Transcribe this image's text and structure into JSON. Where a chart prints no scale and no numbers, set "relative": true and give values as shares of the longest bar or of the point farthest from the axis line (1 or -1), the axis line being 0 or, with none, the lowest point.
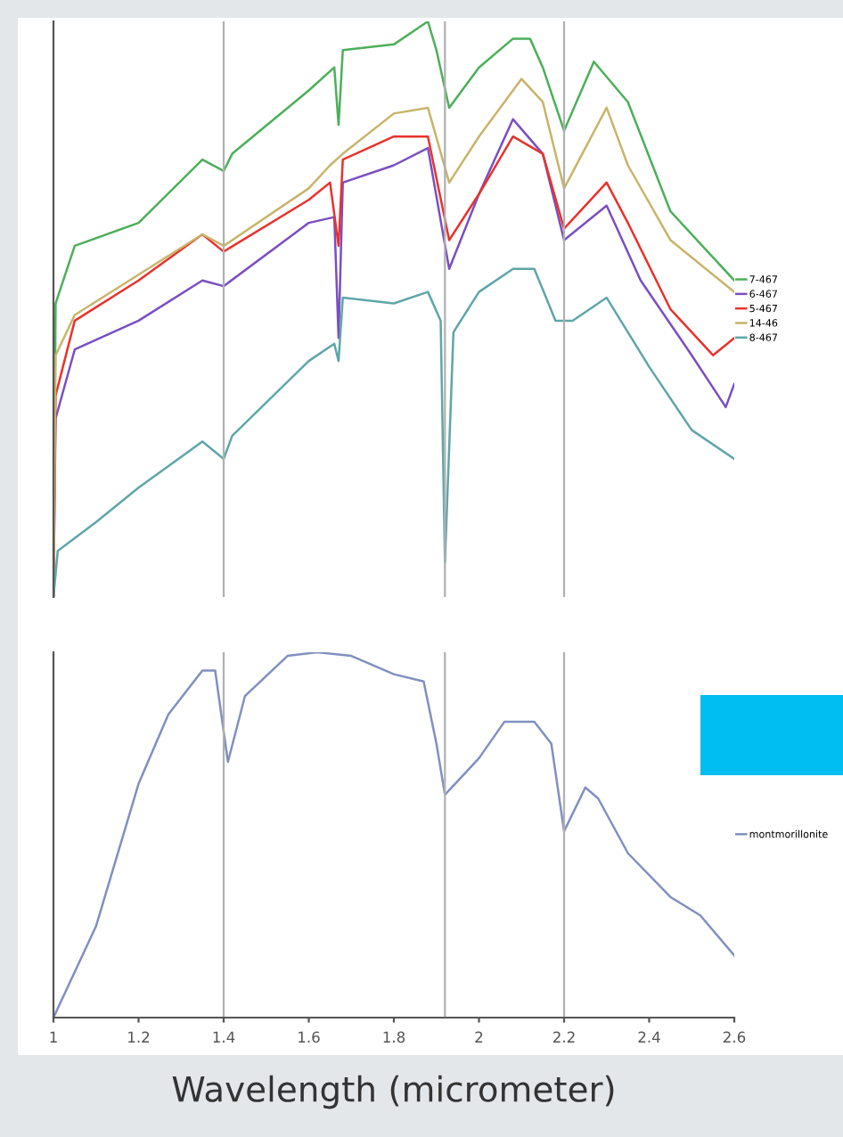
{
  "chart_data": [
    {
      "type": "line",
      "relative": true,
      "xlim": [
        1,
        2.6
      ],
      "xticks": [
        1,
        1.2,
        1.4,
        1.6,
        1.8,
        2,
        2.2,
        2.4,
        2.6
      ],
      "tick_labels": false,
      "legend": "right",
      "grid": false,
      "ref_lines": [
        {
          "axis": "x",
          "value": 1.4,
          "color": "#b0b0b0"
        },
        {
          "axis": "x",
          "value": 1.92,
          "color": "#b0b0b0"
        },
        {
          "axis": "x",
          "value": 2.2,
          "color": "#b0b0b0"
        }
      ],
      "series": [
        {
          "name": "7-467",
          "color": "#4caf5a",
          "x": [
            1.0,
            1.005,
            1.05,
            1.2,
            1.35,
            1.4,
            1.42,
            1.6,
            1.66,
            1.67,
            1.68,
            1.8,
            1.88,
            1.9,
            1.93,
            2.0,
            2.08,
            2.12,
            2.15,
            2.2,
            2.27,
            2.35,
            2.45,
            2.55,
            2.6
          ],
          "values": [
            0.0,
            0.51,
            0.61,
            0.65,
            0.76,
            0.74,
            0.77,
            0.88,
            0.92,
            0.82,
            0.95,
            0.96,
            1.0,
            0.95,
            0.85,
            0.92,
            0.97,
            0.97,
            0.92,
            0.81,
            0.93,
            0.86,
            0.67,
            0.59,
            0.55
          ]
        },
        {
          "name": "6-467",
          "color": "#7a4fc0",
          "x": [
            1.0,
            1.005,
            1.05,
            1.2,
            1.35,
            1.4,
            1.6,
            1.66,
            1.67,
            1.68,
            1.8,
            1.88,
            1.93,
            2.0,
            2.08,
            2.15,
            2.2,
            2.3,
            2.38,
            2.5,
            2.58,
            2.6
          ],
          "values": [
            0.0,
            0.31,
            0.43,
            0.48,
            0.55,
            0.54,
            0.65,
            0.66,
            0.45,
            0.72,
            0.75,
            0.78,
            0.57,
            0.7,
            0.83,
            0.77,
            0.62,
            0.68,
            0.55,
            0.42,
            0.33,
            0.37
          ]
        },
        {
          "name": "5-467",
          "color": "#e8322d",
          "x": [
            1.0,
            1.005,
            1.05,
            1.2,
            1.35,
            1.4,
            1.6,
            1.65,
            1.67,
            1.68,
            1.8,
            1.88,
            1.93,
            2.0,
            2.08,
            2.15,
            2.2,
            2.3,
            2.35,
            2.45,
            2.55,
            2.6
          ],
          "values": [
            0.0,
            0.35,
            0.48,
            0.55,
            0.63,
            0.6,
            0.69,
            0.72,
            0.61,
            0.76,
            0.8,
            0.8,
            0.62,
            0.7,
            0.8,
            0.77,
            0.64,
            0.72,
            0.65,
            0.5,
            0.42,
            0.45
          ]
        },
        {
          "name": "14-46",
          "color": "#c8b46a",
          "x": [
            1.0,
            1.005,
            1.05,
            1.2,
            1.35,
            1.4,
            1.6,
            1.65,
            1.68,
            1.8,
            1.88,
            1.93,
            2.0,
            2.1,
            2.15,
            2.2,
            2.3,
            2.35,
            2.45,
            2.6
          ],
          "values": [
            0.0,
            0.42,
            0.49,
            0.56,
            0.63,
            0.61,
            0.71,
            0.75,
            0.77,
            0.84,
            0.85,
            0.72,
            0.8,
            0.9,
            0.86,
            0.71,
            0.85,
            0.75,
            0.62,
            0.53
          ]
        },
        {
          "name": "8-467",
          "color": "#5fa6a8",
          "x": [
            1.0,
            1.01,
            1.1,
            1.2,
            1.35,
            1.4,
            1.42,
            1.6,
            1.66,
            1.67,
            1.68,
            1.8,
            1.88,
            1.91,
            1.92,
            1.94,
            2.0,
            2.08,
            2.13,
            2.18,
            2.22,
            2.3,
            2.4,
            2.5,
            2.6
          ],
          "values": [
            0.0,
            0.08,
            0.13,
            0.19,
            0.27,
            0.24,
            0.28,
            0.41,
            0.44,
            0.41,
            0.52,
            0.51,
            0.53,
            0.48,
            0.06,
            0.46,
            0.53,
            0.57,
            0.57,
            0.48,
            0.48,
            0.52,
            0.4,
            0.29,
            0.24
          ]
        }
      ]
    },
    {
      "type": "line",
      "relative": true,
      "xlim": [
        1,
        2.6
      ],
      "xticks": [
        1,
        1.2,
        1.4,
        1.6,
        1.8,
        2,
        2.2,
        2.4,
        2.6
      ],
      "tick_labels": "x",
      "legend": "right",
      "grid": false,
      "xlabel": "Wavelength (micrometer)",
      "ref_lines": [
        {
          "axis": "x",
          "value": 1.4,
          "color": "#b0b0b0"
        },
        {
          "axis": "x",
          "value": 1.92,
          "color": "#b0b0b0"
        },
        {
          "axis": "x",
          "value": 2.2,
          "color": "#b0b0b0"
        }
      ],
      "series": [
        {
          "name": "montmorillonite",
          "color": "#8090c0",
          "x": [
            1.0,
            1.1,
            1.2,
            1.27,
            1.35,
            1.38,
            1.41,
            1.45,
            1.55,
            1.62,
            1.7,
            1.8,
            1.87,
            1.9,
            1.92,
            2.0,
            2.06,
            2.13,
            2.17,
            2.2,
            2.25,
            2.28,
            2.35,
            2.45,
            2.52,
            2.6
          ],
          "values": [
            0.0,
            0.25,
            0.64,
            0.83,
            0.95,
            0.95,
            0.7,
            0.88,
            0.99,
            1.0,
            0.99,
            0.94,
            0.92,
            0.75,
            0.61,
            0.71,
            0.81,
            0.81,
            0.75,
            0.51,
            0.63,
            0.6,
            0.45,
            0.33,
            0.28,
            0.17
          ]
        }
      ]
    }
  ]
}
